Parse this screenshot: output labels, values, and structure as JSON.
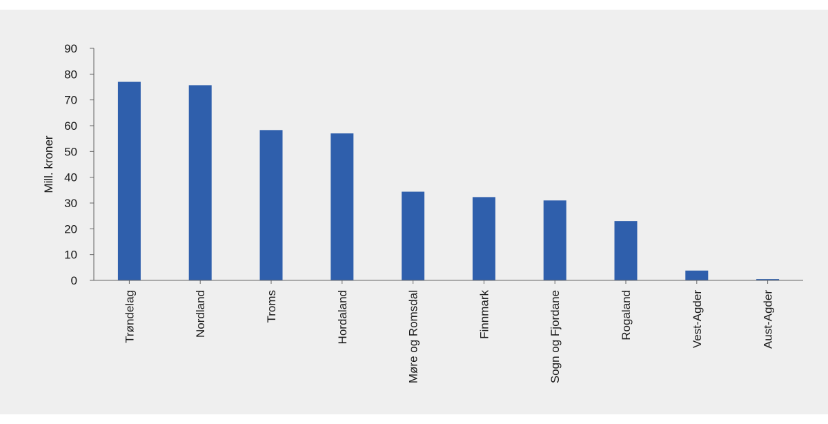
{
  "chart_data": {
    "type": "bar",
    "title": "",
    "xlabel": "",
    "ylabel": "Mill. kroner",
    "ylim": [
      0,
      90
    ],
    "yticks": [
      0,
      10,
      20,
      30,
      40,
      50,
      60,
      70,
      80,
      90
    ],
    "categories": [
      "Trøndelag",
      "Nordland",
      "Troms",
      "Hordaland",
      "Møre og Romsdal",
      "Finnmark",
      "Sogn og Fjordane",
      "Rogaland",
      "Vest-Agder",
      "Aust-Agder"
    ],
    "values": [
      77,
      75.7,
      58.3,
      57,
      34.4,
      32.3,
      31,
      23,
      3.8,
      0.5
    ],
    "bar_color": "#2f5fac",
    "grid": false,
    "legend": "none"
  }
}
